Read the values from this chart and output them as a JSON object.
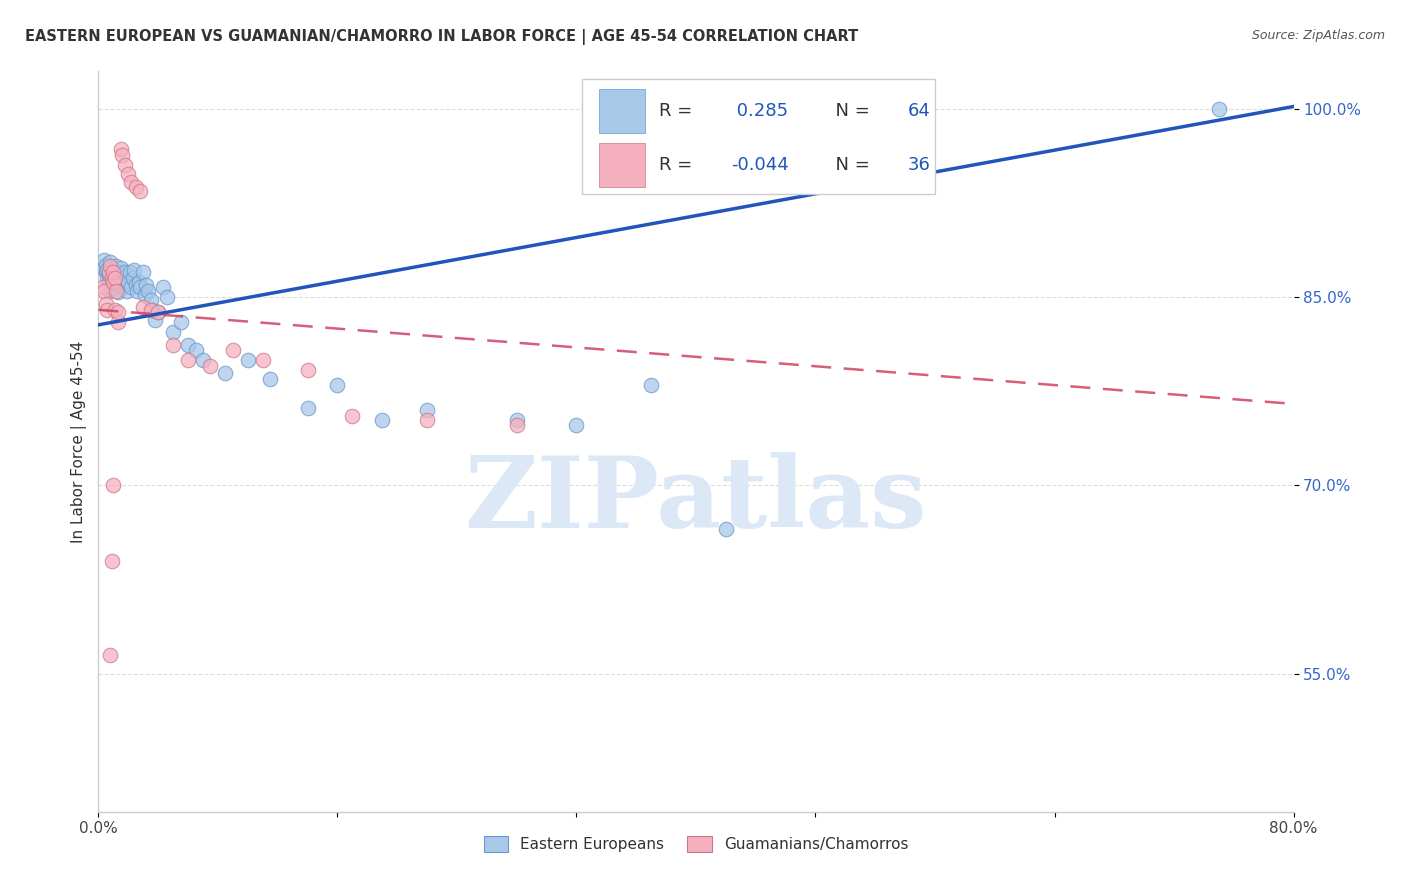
{
  "title": "EASTERN EUROPEAN VS GUAMANIAN/CHAMORRO IN LABOR FORCE | AGE 45-54 CORRELATION CHART",
  "source": "Source: ZipAtlas.com",
  "ylabel": "In Labor Force | Age 45-54",
  "xlim": [
    0.0,
    0.8
  ],
  "ylim": [
    0.44,
    1.03
  ],
  "yticks": [
    0.55,
    0.7,
    0.85,
    1.0
  ],
  "ytick_labels": [
    "55.0%",
    "70.0%",
    "85.0%",
    "100.0%"
  ],
  "xticks": [
    0.0,
    0.16,
    0.32,
    0.48,
    0.64,
    0.8
  ],
  "xtick_labels": [
    "0.0%",
    "",
    "",
    "",
    "",
    "80.0%"
  ],
  "legend_r_blue": "0.285",
  "legend_n_blue": "64",
  "legend_r_pink": "-0.044",
  "legend_n_pink": "36",
  "blue_color": "#a8c8e8",
  "pink_color": "#f5b0c0",
  "trend_blue_color": "#2255bb",
  "trend_pink_color": "#d04060",
  "watermark_color": "#dce8f5",
  "background_color": "#ffffff",
  "blue_label": "Eastern Europeans",
  "pink_label": "Guamanians/Chamorros",
  "blue_trend_x0": 0.0,
  "blue_trend_y0": 0.828,
  "blue_trend_x1": 0.8,
  "blue_trend_y1": 1.002,
  "pink_trend_x0": 0.0,
  "pink_trend_y0": 0.84,
  "pink_trend_x1": 0.8,
  "pink_trend_y1": 0.765,
  "blue_x": [
    0.003,
    0.004,
    0.005,
    0.005,
    0.006,
    0.006,
    0.007,
    0.007,
    0.007,
    0.008,
    0.008,
    0.009,
    0.009,
    0.01,
    0.01,
    0.011,
    0.011,
    0.012,
    0.012,
    0.013,
    0.013,
    0.014,
    0.015,
    0.015,
    0.016,
    0.017,
    0.018,
    0.019,
    0.02,
    0.021,
    0.022,
    0.023,
    0.024,
    0.025,
    0.026,
    0.027,
    0.028,
    0.03,
    0.031,
    0.032,
    0.033,
    0.035,
    0.036,
    0.038,
    0.04,
    0.043,
    0.046,
    0.05,
    0.055,
    0.06,
    0.065,
    0.07,
    0.085,
    0.1,
    0.115,
    0.14,
    0.16,
    0.19,
    0.22,
    0.28,
    0.32,
    0.37,
    0.42,
    0.75
  ],
  "blue_y": [
    0.873,
    0.88,
    0.876,
    0.87,
    0.865,
    0.872,
    0.868,
    0.862,
    0.87,
    0.855,
    0.878,
    0.86,
    0.868,
    0.857,
    0.865,
    0.872,
    0.858,
    0.875,
    0.862,
    0.87,
    0.854,
    0.868,
    0.86,
    0.873,
    0.858,
    0.865,
    0.87,
    0.855,
    0.862,
    0.87,
    0.858,
    0.865,
    0.872,
    0.86,
    0.855,
    0.862,
    0.858,
    0.87,
    0.852,
    0.86,
    0.855,
    0.848,
    0.84,
    0.832,
    0.838,
    0.858,
    0.85,
    0.822,
    0.83,
    0.812,
    0.808,
    0.8,
    0.79,
    0.8,
    0.785,
    0.762,
    0.78,
    0.752,
    0.76,
    0.752,
    0.748,
    0.78,
    0.665,
    1.0
  ],
  "pink_x": [
    0.003,
    0.004,
    0.005,
    0.006,
    0.007,
    0.008,
    0.009,
    0.01,
    0.01,
    0.011,
    0.011,
    0.012,
    0.013,
    0.013,
    0.015,
    0.016,
    0.018,
    0.02,
    0.022,
    0.025,
    0.028,
    0.03,
    0.035,
    0.04,
    0.05,
    0.06,
    0.075,
    0.09,
    0.11,
    0.14,
    0.17,
    0.22,
    0.28,
    0.01,
    0.009,
    0.008
  ],
  "pink_y": [
    0.858,
    0.855,
    0.845,
    0.84,
    0.87,
    0.875,
    0.865,
    0.862,
    0.87,
    0.865,
    0.84,
    0.855,
    0.83,
    0.838,
    0.968,
    0.963,
    0.955,
    0.948,
    0.942,
    0.938,
    0.935,
    0.842,
    0.84,
    0.838,
    0.812,
    0.8,
    0.795,
    0.808,
    0.8,
    0.792,
    0.755,
    0.752,
    0.748,
    0.7,
    0.64,
    0.565
  ]
}
